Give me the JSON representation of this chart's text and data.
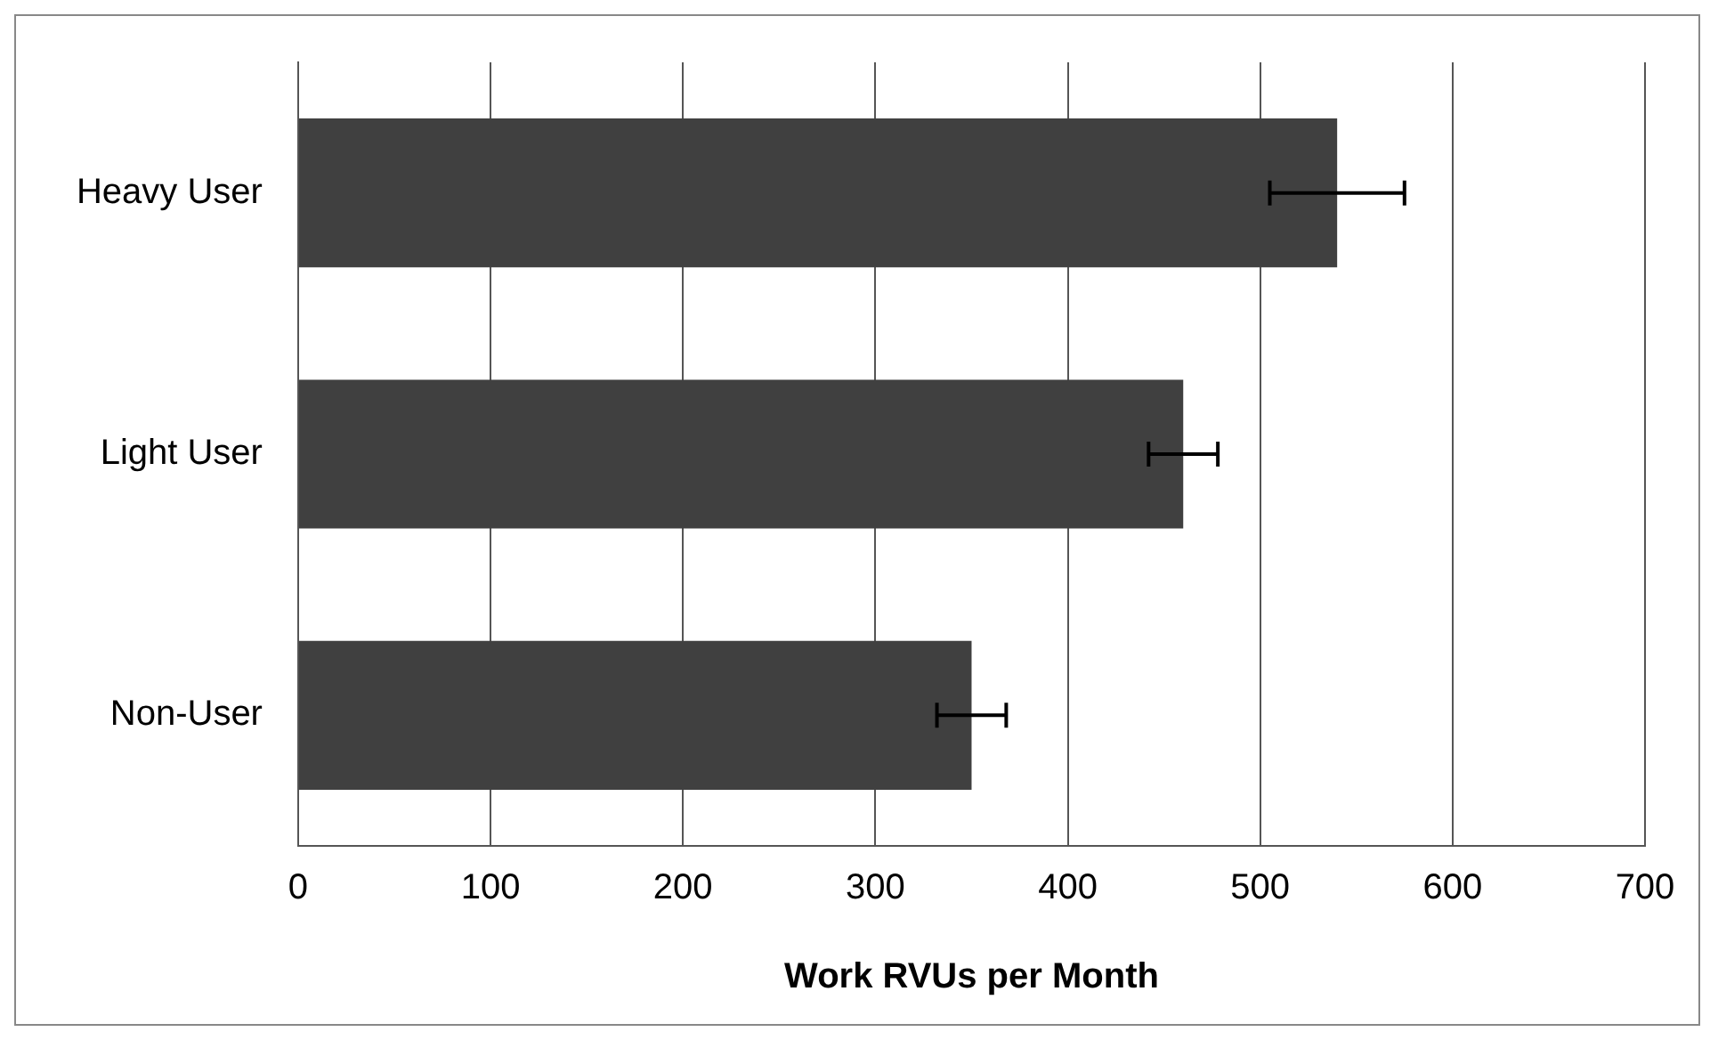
{
  "chart_data": {
    "type": "bar",
    "orientation": "horizontal",
    "xlabel": "Work RVUs per Month",
    "categories": [
      "Heavy User",
      "Light User",
      "Non-User"
    ],
    "values": [
      540,
      460,
      350
    ],
    "errors": [
      35,
      18,
      18
    ],
    "color": "#404040",
    "xlim": [
      0,
      700
    ],
    "xticks": [
      0,
      100,
      200,
      300,
      400,
      500,
      600,
      700
    ],
    "grid": "x",
    "legend": false
  }
}
